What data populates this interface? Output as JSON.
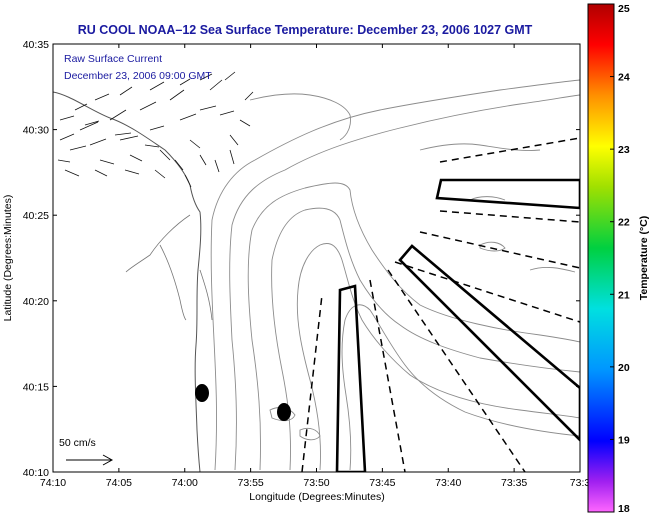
{
  "title": "RU COOL  NOAA–12  Sea Surface Temperature:  December 23, 2006 1027 GMT",
  "overlay": {
    "line1": "Raw Surface Current",
    "line2": "December 23, 2006 09:00 GMT"
  },
  "scale_label": "50 cm/s",
  "axes": {
    "xlabel": "Longitude (Degrees:Minutes)",
    "ylabel": "Latitude (Degrees:Minutes)",
    "x_ticks": [
      "74:10",
      "74:05",
      "74:00",
      "73:55",
      "73:50",
      "73:45",
      "73:40",
      "73:35",
      "73:3"
    ],
    "y_ticks": [
      "40:10",
      "40:15",
      "40:20",
      "40:25",
      "40:30",
      "40:35"
    ]
  },
  "colorbar": {
    "label": "Temperature (°C)",
    "min": 18,
    "max": 25,
    "ticks": [
      "18",
      "19",
      "20",
      "21",
      "22",
      "23",
      "24",
      "25"
    ]
  },
  "colors": {
    "title": "#1a1aa0",
    "overlay_text": "#1a1aa0",
    "land": "#ffffff",
    "contours": "#8c8c8c",
    "frame": "#000000"
  }
}
